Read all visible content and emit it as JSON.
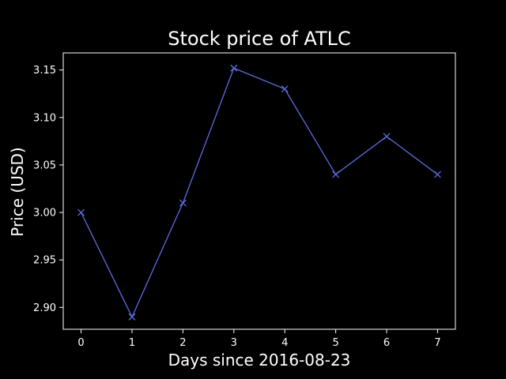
{
  "chart_data": {
    "type": "line",
    "title": "Stock price of ATLC",
    "xlabel": "Days since 2016-08-23",
    "ylabel": "Price (USD)",
    "x": [
      0,
      1,
      2,
      3,
      4,
      5,
      6,
      7
    ],
    "series": [
      {
        "values": [
          3.0,
          2.89,
          3.01,
          3.152,
          3.13,
          3.04,
          3.08,
          3.04
        ],
        "color": "#5a6ee0",
        "marker": "x"
      }
    ],
    "xlim": [
      -0.35,
      7.35
    ],
    "ylim": [
      2.877,
      3.168
    ],
    "xticks": [
      0,
      1,
      2,
      3,
      4,
      5,
      6,
      7
    ],
    "yticks": [
      2.9,
      2.95,
      3.0,
      3.05,
      3.1,
      3.15
    ],
    "ytick_labels": [
      "2.90",
      "2.95",
      "3.00",
      "3.05",
      "3.10",
      "3.15"
    ],
    "grid": false,
    "background": "#000000",
    "foreground": "#ffffff"
  }
}
